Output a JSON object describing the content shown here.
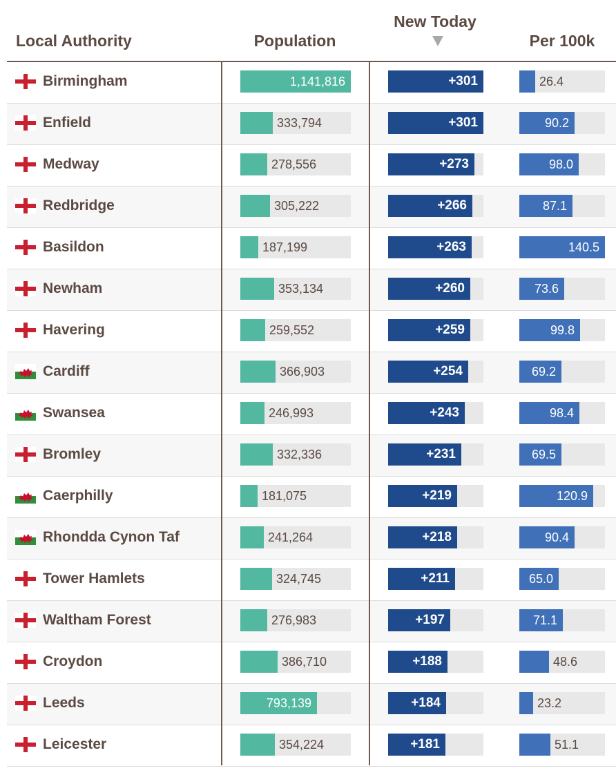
{
  "headers": {
    "authority": "Local Authority",
    "population": "Population",
    "new_today": "New Today",
    "per_100k": "Per 100k"
  },
  "colors": {
    "population": "#52b89f",
    "new_today": "#1f4a8c",
    "per_100k": "#3f70b8",
    "track": "#e8e8e8",
    "text": "#5b4a43"
  },
  "sort": {
    "column": "new_today",
    "direction": "descending",
    "indicator_icon": "sort-down-triangle-icon"
  },
  "chart_data": {
    "type": "table",
    "columns": [
      "Local Authority",
      "Population",
      "New Today",
      "Per 100k"
    ],
    "scales": {
      "population_max": 1141816,
      "new_today_max": 301,
      "per_100k_max": 140.5
    },
    "rows": [
      {
        "name": "Birmingham",
        "flag": "england",
        "population": 1141816,
        "population_label": "1,141,816",
        "new_today": 301,
        "new_label": "+301",
        "per_100k": 26.4,
        "per_label": "26.4"
      },
      {
        "name": "Enfield",
        "flag": "england",
        "population": 333794,
        "population_label": "333,794",
        "new_today": 301,
        "new_label": "+301",
        "per_100k": 90.2,
        "per_label": "90.2"
      },
      {
        "name": "Medway",
        "flag": "england",
        "population": 278556,
        "population_label": "278,556",
        "new_today": 273,
        "new_label": "+273",
        "per_100k": 98.0,
        "per_label": "98.0"
      },
      {
        "name": "Redbridge",
        "flag": "england",
        "population": 305222,
        "population_label": "305,222",
        "new_today": 266,
        "new_label": "+266",
        "per_100k": 87.1,
        "per_label": "87.1"
      },
      {
        "name": "Basildon",
        "flag": "england",
        "population": 187199,
        "population_label": "187,199",
        "new_today": 263,
        "new_label": "+263",
        "per_100k": 140.5,
        "per_label": "140.5"
      },
      {
        "name": "Newham",
        "flag": "england",
        "population": 353134,
        "population_label": "353,134",
        "new_today": 260,
        "new_label": "+260",
        "per_100k": 73.6,
        "per_label": "73.6"
      },
      {
        "name": "Havering",
        "flag": "england",
        "population": 259552,
        "population_label": "259,552",
        "new_today": 259,
        "new_label": "+259",
        "per_100k": 99.8,
        "per_label": "99.8"
      },
      {
        "name": "Cardiff",
        "flag": "wales",
        "population": 366903,
        "population_label": "366,903",
        "new_today": 254,
        "new_label": "+254",
        "per_100k": 69.2,
        "per_label": "69.2"
      },
      {
        "name": "Swansea",
        "flag": "wales",
        "population": 246993,
        "population_label": "246,993",
        "new_today": 243,
        "new_label": "+243",
        "per_100k": 98.4,
        "per_label": "98.4"
      },
      {
        "name": "Bromley",
        "flag": "england",
        "population": 332336,
        "population_label": "332,336",
        "new_today": 231,
        "new_label": "+231",
        "per_100k": 69.5,
        "per_label": "69.5"
      },
      {
        "name": "Caerphilly",
        "flag": "wales",
        "population": 181075,
        "population_label": "181,075",
        "new_today": 219,
        "new_label": "+219",
        "per_100k": 120.9,
        "per_label": "120.9"
      },
      {
        "name": "Rhondda Cynon Taf",
        "flag": "wales",
        "population": 241264,
        "population_label": "241,264",
        "new_today": 218,
        "new_label": "+218",
        "per_100k": 90.4,
        "per_label": "90.4"
      },
      {
        "name": "Tower Hamlets",
        "flag": "england",
        "population": 324745,
        "population_label": "324,745",
        "new_today": 211,
        "new_label": "+211",
        "per_100k": 65.0,
        "per_label": "65.0"
      },
      {
        "name": "Waltham Forest",
        "flag": "england",
        "population": 276983,
        "population_label": "276,983",
        "new_today": 197,
        "new_label": "+197",
        "per_100k": 71.1,
        "per_label": "71.1"
      },
      {
        "name": "Croydon",
        "flag": "england",
        "population": 386710,
        "population_label": "386,710",
        "new_today": 188,
        "new_label": "+188",
        "per_100k": 48.6,
        "per_label": "48.6"
      },
      {
        "name": "Leeds",
        "flag": "england",
        "population": 793139,
        "population_label": "793,139",
        "new_today": 184,
        "new_label": "+184",
        "per_100k": 23.2,
        "per_label": "23.2"
      },
      {
        "name": "Leicester",
        "flag": "england",
        "population": 354224,
        "population_label": "354,224",
        "new_today": 181,
        "new_label": "+181",
        "per_100k": 51.1,
        "per_label": "51.1"
      }
    ]
  }
}
